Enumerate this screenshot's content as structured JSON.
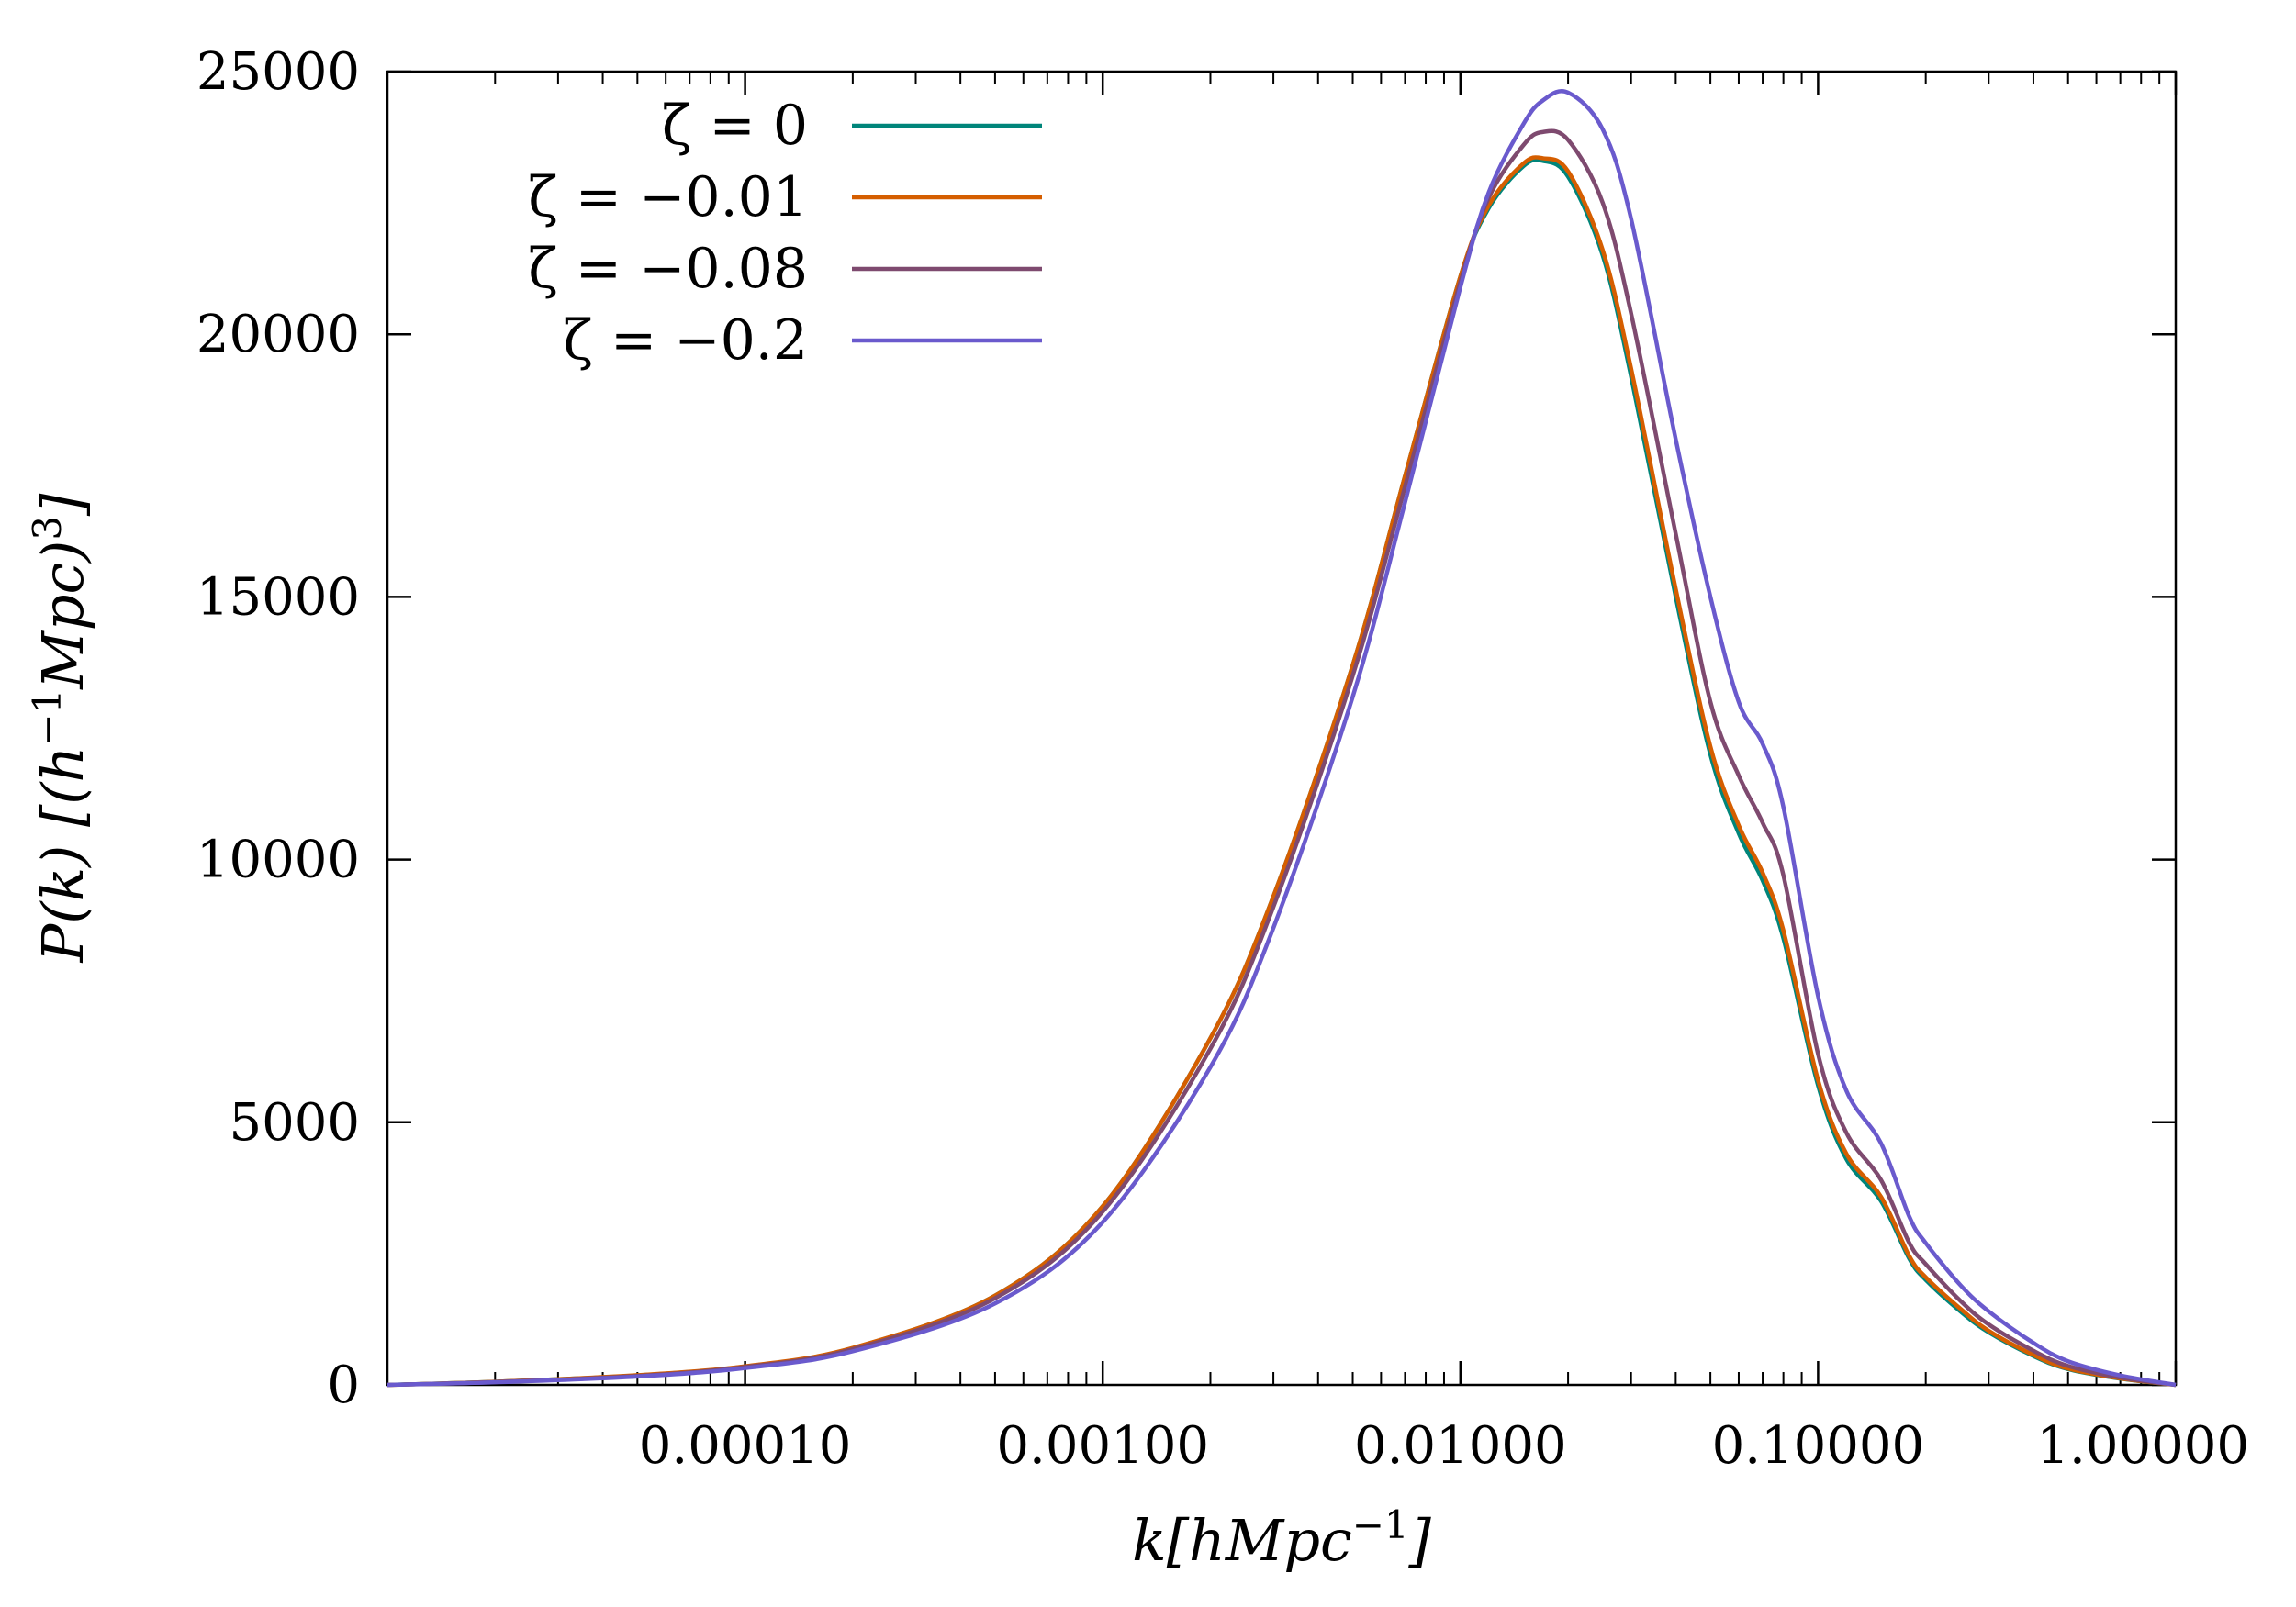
{
  "chart_data": {
    "type": "line",
    "title": "",
    "xlabel": "k[hMpc^{-1}]",
    "ylabel": "P(k) [(h^{-1}Mpc)^3]",
    "xscale": "log",
    "xlim": [
      1e-05,
      1.0
    ],
    "ylim": [
      0,
      25000
    ],
    "xticks": [
      0.0001,
      0.001,
      0.01,
      0.1,
      1.0
    ],
    "xtick_labels": [
      "0.00010",
      "0.00100",
      "0.01000",
      "0.10000",
      "1.00000"
    ],
    "yticks": [
      0,
      5000,
      10000,
      15000,
      20000,
      25000
    ],
    "ytick_labels": [
      "0",
      "5000",
      "10000",
      "15000",
      "20000",
      "25000"
    ],
    "grid": false,
    "legend_position": "top-left",
    "series": [
      {
        "name": "ζ = 0",
        "color": "#00857a",
        "x": [
          1e-05,
          2e-05,
          5e-05,
          0.0001,
          0.0002,
          0.0005,
          0.001,
          0.002,
          0.003,
          0.005,
          0.007,
          0.01,
          0.012,
          0.015,
          0.017,
          0.02,
          0.025,
          0.03,
          0.04,
          0.05,
          0.06,
          0.07,
          0.08,
          0.1,
          0.12,
          0.15,
          0.18,
          0.2,
          0.25,
          0.3,
          0.4,
          0.5,
          0.7,
          1.0
        ],
        "y": [
          0,
          60,
          180,
          350,
          700,
          1700,
          3400,
          6600,
          9300,
          13700,
          17300,
          21100,
          22400,
          23200,
          23300,
          23000,
          21500,
          19200,
          15000,
          12000,
          10500,
          9600,
          8500,
          5700,
          4300,
          3500,
          2400,
          2000,
          1400,
          1000,
          550,
          300,
          120,
          0
        ]
      },
      {
        "name": "ζ = −0.01",
        "color": "#d55e00",
        "x": [
          1e-05,
          2e-05,
          5e-05,
          0.0001,
          0.0002,
          0.0005,
          0.001,
          0.002,
          0.003,
          0.005,
          0.007,
          0.01,
          0.012,
          0.015,
          0.017,
          0.02,
          0.025,
          0.03,
          0.04,
          0.05,
          0.06,
          0.07,
          0.08,
          0.1,
          0.12,
          0.15,
          0.18,
          0.2,
          0.25,
          0.3,
          0.4,
          0.5,
          0.7,
          1.0
        ],
        "y": [
          0,
          60,
          185,
          355,
          705,
          1700,
          3400,
          6600,
          9300,
          13700,
          17300,
          21100,
          22450,
          23250,
          23350,
          23100,
          21600,
          19350,
          15150,
          12150,
          10650,
          9750,
          8650,
          5800,
          4400,
          3580,
          2450,
          2050,
          1450,
          1030,
          570,
          310,
          125,
          0
        ]
      },
      {
        "name": "ζ = −0.08",
        "color": "#7e4a6f",
        "x": [
          1e-05,
          2e-05,
          5e-05,
          0.0001,
          0.0002,
          0.0005,
          0.001,
          0.002,
          0.003,
          0.005,
          0.007,
          0.01,
          0.012,
          0.015,
          0.017,
          0.02,
          0.025,
          0.03,
          0.04,
          0.05,
          0.06,
          0.07,
          0.08,
          0.1,
          0.12,
          0.15,
          0.18,
          0.2,
          0.25,
          0.3,
          0.4,
          0.5,
          0.7,
          1.0
        ],
        "y": [
          0,
          55,
          170,
          340,
          680,
          1650,
          3300,
          6400,
          9100,
          13500,
          17100,
          21000,
          22600,
          23600,
          23850,
          23700,
          22500,
          20400,
          16200,
          13000,
          11600,
          10700,
          9700,
          6300,
          4800,
          3900,
          2700,
          2300,
          1600,
          1150,
          650,
          360,
          140,
          0
        ]
      },
      {
        "name": "ζ = −0.2",
        "color": "#6a5acd",
        "x": [
          1e-05,
          2e-05,
          5e-05,
          0.0001,
          0.0002,
          0.0005,
          0.001,
          0.002,
          0.003,
          0.005,
          0.007,
          0.01,
          0.012,
          0.015,
          0.017,
          0.02,
          0.025,
          0.03,
          0.04,
          0.05,
          0.06,
          0.07,
          0.08,
          0.1,
          0.12,
          0.15,
          0.18,
          0.2,
          0.25,
          0.3,
          0.4,
          0.5,
          0.7,
          1.0
        ],
        "y": [
          0,
          50,
          160,
          320,
          640,
          1550,
          3100,
          6050,
          8700,
          13100,
          16800,
          20900,
          22700,
          24000,
          24450,
          24600,
          23900,
          22200,
          18000,
          15000,
          13000,
          12200,
          11000,
          7400,
          5600,
          4600,
          3200,
          2700,
          1900,
          1400,
          800,
          450,
          180,
          0
        ]
      }
    ]
  }
}
